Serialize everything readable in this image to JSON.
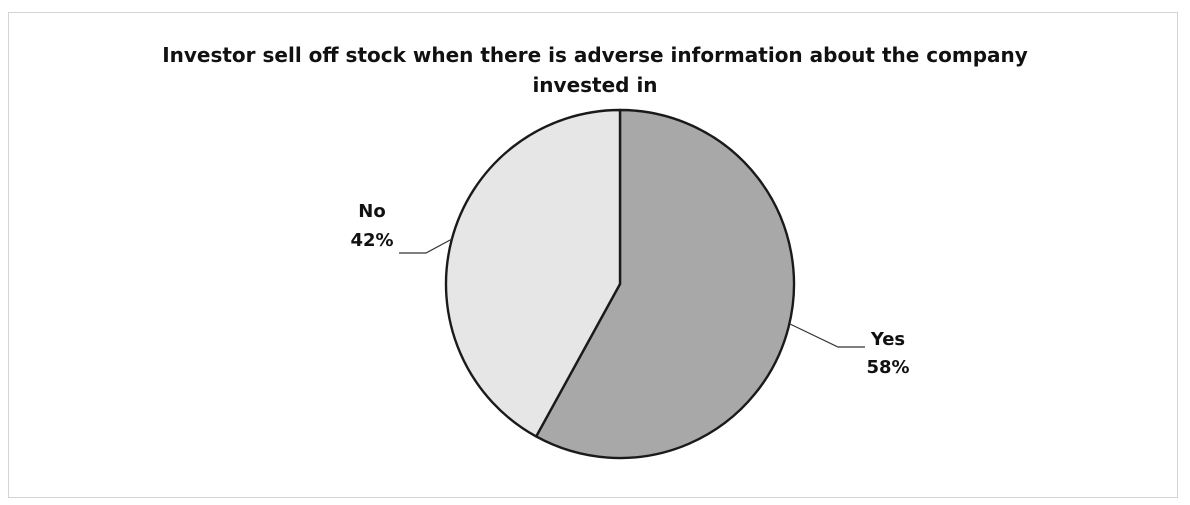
{
  "chart_data": {
    "type": "pie",
    "title": "Investor sell off stock when there is adverse information about the company invested in",
    "title_lines": [
      "Investor sell off stock when there is adverse information about the company",
      "invested in"
    ],
    "slices": [
      {
        "name": "Yes",
        "label": "58%",
        "value": 58,
        "color": "#a8a8a8"
      },
      {
        "name": "No",
        "label": "42%",
        "value": 42,
        "color": "#e6e6e6"
      }
    ],
    "start_angle_deg": 0,
    "direction": "clockwise",
    "legend": "none",
    "edge_color": "#1a1a1a"
  }
}
